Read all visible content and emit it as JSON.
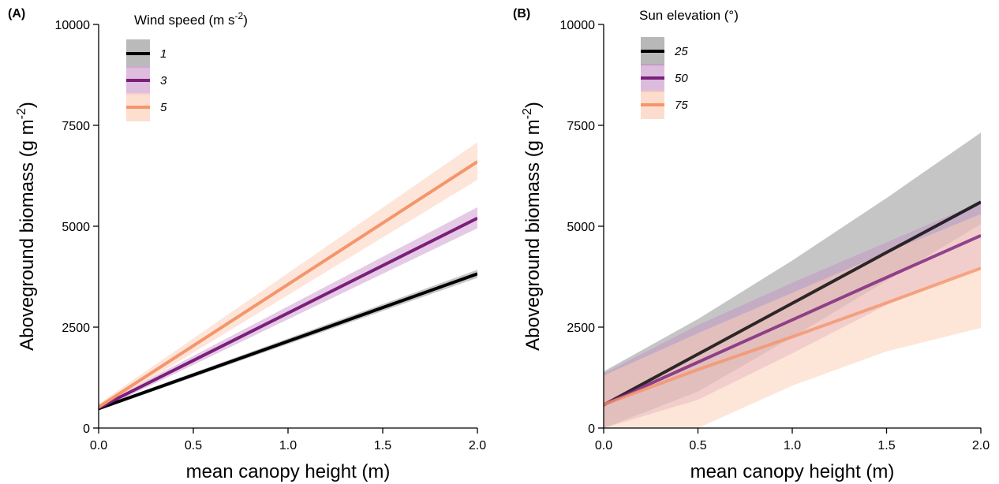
{
  "chart_data": [
    {
      "type": "line",
      "panel_label": "(A)",
      "xlabel": "mean canopy height (m)",
      "ylabel": "Aboveground biomass (g m",
      "ylabel_sup": "-2",
      "ylabel_close": ")",
      "xlim": [
        0,
        2
      ],
      "ylim": [
        0,
        10000
      ],
      "x_ticks": [
        0,
        0.5,
        1,
        1.5,
        2
      ],
      "x_tick_labels": [
        "0.0",
        "0.5",
        "1.0",
        "1.5",
        "2.0"
      ],
      "y_ticks": [
        0,
        2500,
        5000,
        7500,
        10000
      ],
      "y_tick_labels": [
        "0",
        "2500",
        "5000",
        "7500",
        "10000"
      ],
      "legend_title": "Wind speed (m s",
      "legend_title_sup": "-2",
      "legend_title_close": ")",
      "legend_position": "top-left",
      "series": [
        {
          "name": "1",
          "color": "#000000",
          "band_color": "#b3b3b3",
          "band_opacity": 0.75,
          "x": [
            0,
            2
          ],
          "y": [
            480,
            3820
          ],
          "lower": [
            440,
            3720
          ],
          "upper": [
            520,
            3920
          ]
        },
        {
          "name": "3",
          "color": "#7a1f7a",
          "band_color": "#d4a7d4",
          "band_opacity": 0.6,
          "x": [
            0,
            2
          ],
          "y": [
            500,
            5200
          ],
          "lower": [
            440,
            4950
          ],
          "upper": [
            560,
            5470
          ]
        },
        {
          "name": "5",
          "color": "#f5956b",
          "band_color": "#fbd4bf",
          "band_opacity": 0.6,
          "x": [
            0,
            2
          ],
          "y": [
            520,
            6600
          ],
          "lower": [
            440,
            6150
          ],
          "upper": [
            600,
            7080
          ]
        }
      ]
    },
    {
      "type": "line",
      "panel_label": "(B)",
      "xlabel": "mean canopy height (m)",
      "ylabel": "Aboveground biomass (g m",
      "ylabel_sup": "-2",
      "ylabel_close": ")",
      "xlim": [
        0,
        2
      ],
      "ylim": [
        0,
        10000
      ],
      "x_ticks": [
        0,
        0.5,
        1,
        1.5,
        2
      ],
      "x_tick_labels": [
        "0.0",
        "0.5",
        "1.0",
        "1.5",
        "2.0"
      ],
      "y_ticks": [
        0,
        2500,
        5000,
        7500,
        10000
      ],
      "y_tick_labels": [
        "0",
        "2500",
        "5000",
        "7500",
        "10000"
      ],
      "legend_title": "Sun elevation (°)",
      "legend_title_sup": "",
      "legend_title_close": "",
      "legend_position": "top-left",
      "series": [
        {
          "name": "25",
          "color": "#000000",
          "band_color": "#a6a6a6",
          "band_opacity": 0.65,
          "x": [
            0,
            0.5,
            1,
            1.5,
            2
          ],
          "y": [
            570,
            1830,
            3090,
            4350,
            5600
          ],
          "lower": [
            0,
            900,
            2250,
            3650,
            5050
          ],
          "upper": [
            1400,
            2700,
            4150,
            5700,
            7320
          ]
        },
        {
          "name": "50",
          "color": "#7a1f7a",
          "band_color": "#c48fc4",
          "band_opacity": 0.45,
          "x": [
            0,
            0.5,
            1,
            1.5,
            2
          ],
          "y": [
            580,
            1630,
            2680,
            3730,
            4770
          ],
          "lower": [
            0,
            700,
            1850,
            3050,
            4000
          ],
          "upper": [
            1350,
            2550,
            3600,
            4600,
            5600
          ]
        },
        {
          "name": "75",
          "color": "#f5956b",
          "band_color": "#fbcfb8",
          "band_opacity": 0.55,
          "x": [
            0,
            0.5,
            1,
            1.5,
            2
          ],
          "y": [
            580,
            1450,
            2260,
            3100,
            3960
          ],
          "lower": [
            0,
            0,
            1050,
            1900,
            2480
          ],
          "upper": [
            1300,
            2350,
            3350,
            4350,
            5300
          ]
        }
      ]
    }
  ]
}
